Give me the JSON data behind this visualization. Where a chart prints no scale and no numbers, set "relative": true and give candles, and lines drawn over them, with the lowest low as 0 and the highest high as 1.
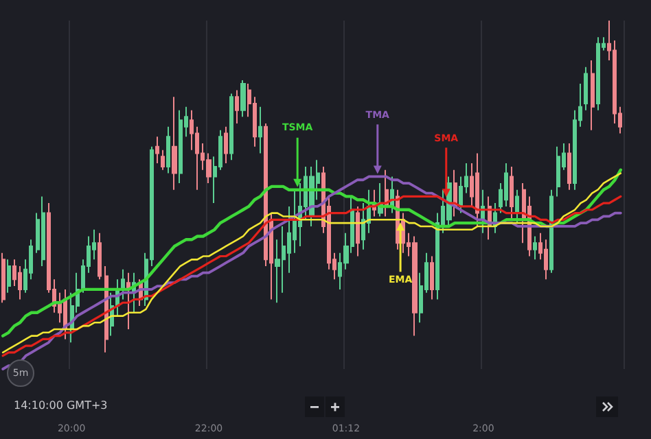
{
  "chart_data": {
    "type": "candlestick",
    "relative": true,
    "grid": "x",
    "marker": "none",
    "line_style": "solid",
    "categories": [
      null,
      null,
      null,
      null,
      null,
      null,
      null,
      null,
      null,
      null,
      null,
      null,
      "20:00",
      null,
      null,
      null,
      null,
      null,
      null,
      null,
      null,
      null,
      null,
      null,
      null,
      null,
      null,
      null,
      null,
      null,
      null,
      null,
      null,
      null,
      null,
      null,
      "22:00",
      null,
      null,
      null,
      null,
      null,
      null,
      null,
      null,
      null,
      null,
      null,
      null,
      null,
      null,
      null,
      null,
      null,
      null,
      null,
      null,
      null,
      null,
      null,
      "01:12",
      null,
      null,
      null,
      null,
      null,
      null,
      null,
      null,
      null,
      null,
      null,
      null,
      null,
      null,
      null,
      null,
      null,
      null,
      null,
      null,
      null,
      null,
      null,
      "2:00",
      null,
      null,
      null,
      null,
      null,
      null,
      null,
      null,
      null,
      null,
      null,
      null,
      null,
      null,
      null,
      null,
      null,
      null,
      null,
      null,
      null,
      null,
      null,
      null
    ],
    "ohlc": [
      [
        0.28,
        0.3,
        0.15,
        0.16
      ],
      [
        0.2,
        0.28,
        0.18,
        0.26
      ],
      [
        0.26,
        0.28,
        0.2,
        0.22
      ],
      [
        0.24,
        0.26,
        0.16,
        0.19
      ],
      [
        0.19,
        0.28,
        0.18,
        0.25
      ],
      [
        0.24,
        0.34,
        0.22,
        0.32
      ],
      [
        0.31,
        0.42,
        0.3,
        0.4
      ],
      [
        0.28,
        0.47,
        0.26,
        0.42
      ],
      [
        0.42,
        0.45,
        0.18,
        0.19
      ],
      [
        0.19,
        0.22,
        0.12,
        0.14
      ],
      [
        0.15,
        0.18,
        0.09,
        0.12
      ],
      [
        0.16,
        0.19,
        0.04,
        0.07
      ],
      [
        0.07,
        0.18,
        0.03,
        0.14
      ],
      [
        0.14,
        0.24,
        0.12,
        0.19
      ],
      [
        0.19,
        0.28,
        0.18,
        0.26
      ],
      [
        0.26,
        0.35,
        0.24,
        0.32
      ],
      [
        0.31,
        0.37,
        0.28,
        0.33
      ],
      [
        0.33,
        0.36,
        0.22,
        0.23
      ],
      [
        0.23,
        0.26,
        0.0,
        0.04
      ],
      [
        0.08,
        0.18,
        0.05,
        0.14
      ],
      [
        0.14,
        0.22,
        0.11,
        0.19
      ],
      [
        0.19,
        0.25,
        0.16,
        0.22
      ],
      [
        0.21,
        0.24,
        0.07,
        0.19
      ],
      [
        0.18,
        0.24,
        0.12,
        0.21
      ],
      [
        0.21,
        0.22,
        0.14,
        0.16
      ],
      [
        0.16,
        0.3,
        0.14,
        0.28
      ],
      [
        0.28,
        0.62,
        0.26,
        0.61
      ],
      [
        0.62,
        0.65,
        0.57,
        0.6
      ],
      [
        0.59,
        0.61,
        0.55,
        0.56
      ],
      [
        0.56,
        0.68,
        0.54,
        0.65
      ],
      [
        0.62,
        0.77,
        0.49,
        0.54
      ],
      [
        0.54,
        0.73,
        0.51,
        0.7
      ],
      [
        0.68,
        0.74,
        0.65,
        0.71
      ],
      [
        0.7,
        0.73,
        0.61,
        0.66
      ],
      [
        0.66,
        0.68,
        0.49,
        0.6
      ],
      [
        0.6,
        0.63,
        0.55,
        0.58
      ],
      [
        0.58,
        0.6,
        0.51,
        0.53
      ],
      [
        0.53,
        0.59,
        0.45,
        0.56
      ],
      [
        0.56,
        0.67,
        0.55,
        0.65
      ],
      [
        0.66,
        0.68,
        0.57,
        0.6
      ],
      [
        0.6,
        0.78,
        0.58,
        0.77
      ],
      [
        0.77,
        0.79,
        0.69,
        0.73
      ],
      [
        0.73,
        0.82,
        0.71,
        0.81
      ],
      [
        0.79,
        0.81,
        0.71,
        0.75
      ],
      [
        0.75,
        0.77,
        0.62,
        0.65
      ],
      [
        0.65,
        0.74,
        0.6,
        0.68
      ],
      [
        0.68,
        0.69,
        0.26,
        0.28
      ],
      [
        0.4,
        0.42,
        0.16,
        0.27
      ],
      [
        0.26,
        0.34,
        0.15,
        0.28
      ],
      [
        0.28,
        0.38,
        0.18,
        0.32
      ],
      [
        0.3,
        0.44,
        0.24,
        0.36
      ],
      [
        0.34,
        0.49,
        0.3,
        0.4
      ],
      [
        0.38,
        0.51,
        0.32,
        0.44
      ],
      [
        0.44,
        0.56,
        0.4,
        0.53
      ],
      [
        0.41,
        0.56,
        0.38,
        0.53
      ],
      [
        0.51,
        0.58,
        0.46,
        0.54
      ],
      [
        0.54,
        0.56,
        0.36,
        0.38
      ],
      [
        0.44,
        0.47,
        0.25,
        0.27
      ],
      [
        0.28,
        0.3,
        0.22,
        0.25
      ],
      [
        0.23,
        0.3,
        0.19,
        0.27
      ],
      [
        0.27,
        0.36,
        0.25,
        0.32
      ],
      [
        0.32,
        0.47,
        0.3,
        0.43
      ],
      [
        0.42,
        0.44,
        0.29,
        0.33
      ],
      [
        0.34,
        0.45,
        0.31,
        0.4
      ],
      [
        0.39,
        0.49,
        0.36,
        0.44
      ],
      [
        0.45,
        0.49,
        0.41,
        0.43
      ],
      [
        0.42,
        0.51,
        0.41,
        0.45
      ],
      [
        0.49,
        0.55,
        0.41,
        0.44
      ],
      [
        0.44,
        0.53,
        0.42,
        0.49
      ],
      [
        0.47,
        0.49,
        0.31,
        0.33
      ],
      [
        0.4,
        0.42,
        0.3,
        0.33
      ],
      [
        0.33,
        0.36,
        0.29,
        0.32
      ],
      [
        0.33,
        0.35,
        0.05,
        0.12
      ],
      [
        0.12,
        0.24,
        0.09,
        0.2
      ],
      [
        0.19,
        0.3,
        0.18,
        0.27
      ],
      [
        0.27,
        0.29,
        0.16,
        0.19
      ],
      [
        0.19,
        0.42,
        0.16,
        0.39
      ],
      [
        0.38,
        0.49,
        0.36,
        0.44
      ],
      [
        0.4,
        0.53,
        0.38,
        0.51
      ],
      [
        0.51,
        0.55,
        0.41,
        0.44
      ],
      [
        0.44,
        0.53,
        0.42,
        0.5
      ],
      [
        0.5,
        0.57,
        0.48,
        0.53
      ],
      [
        0.53,
        0.57,
        0.44,
        0.47
      ],
      [
        0.54,
        0.6,
        0.38,
        0.42
      ],
      [
        0.4,
        0.49,
        0.36,
        0.44
      ],
      [
        0.44,
        0.47,
        0.34,
        0.38
      ],
      [
        0.38,
        0.45,
        0.36,
        0.42
      ],
      [
        0.44,
        0.51,
        0.42,
        0.49
      ],
      [
        0.46,
        0.57,
        0.44,
        0.54
      ],
      [
        0.53,
        0.56,
        0.4,
        0.44
      ],
      [
        0.42,
        0.49,
        0.39,
        0.47
      ],
      [
        0.49,
        0.51,
        0.33,
        0.4
      ],
      [
        0.44,
        0.47,
        0.29,
        0.31
      ],
      [
        0.31,
        0.35,
        0.28,
        0.33
      ],
      [
        0.33,
        0.36,
        0.28,
        0.3
      ],
      [
        0.31,
        0.34,
        0.22,
        0.25
      ],
      [
        0.25,
        0.49,
        0.24,
        0.47
      ],
      [
        0.5,
        0.62,
        0.47,
        0.59
      ],
      [
        0.56,
        0.63,
        0.55,
        0.6
      ],
      [
        0.6,
        0.63,
        0.49,
        0.51
      ],
      [
        0.51,
        0.73,
        0.49,
        0.7
      ],
      [
        0.7,
        0.81,
        0.68,
        0.74
      ],
      [
        0.75,
        0.86,
        0.73,
        0.84
      ],
      [
        0.84,
        0.88,
        0.67,
        0.74
      ],
      [
        0.75,
        0.95,
        0.73,
        0.93
      ],
      [
        0.92,
        0.95,
        0.91,
        0.93
      ],
      [
        0.93,
        1.0,
        0.88,
        0.91
      ],
      [
        0.91,
        0.94,
        0.69,
        0.72
      ],
      [
        0.72,
        0.74,
        0.66,
        0.68
      ]
    ],
    "series": [
      {
        "type": "line",
        "name": "TSMA",
        "color": "#3fd83a",
        "values": [
          0.05,
          0.06,
          0.08,
          0.09,
          0.11,
          0.12,
          0.12,
          0.13,
          0.14,
          0.15,
          0.15,
          0.16,
          0.17,
          0.18,
          0.19,
          0.19,
          0.19,
          0.19,
          0.19,
          0.19,
          0.19,
          0.19,
          0.19,
          0.2,
          0.21,
          0.22,
          0.24,
          0.26,
          0.28,
          0.3,
          0.32,
          0.33,
          0.34,
          0.34,
          0.35,
          0.35,
          0.36,
          0.37,
          0.39,
          0.4,
          0.41,
          0.42,
          0.43,
          0.44,
          0.46,
          0.47,
          0.49,
          0.5,
          0.5,
          0.5,
          0.49,
          0.49,
          0.49,
          0.49,
          0.49,
          0.49,
          0.49,
          0.49,
          0.48,
          0.48,
          0.47,
          0.47,
          0.46,
          0.46,
          0.45,
          0.45,
          0.44,
          0.44,
          0.44,
          0.43,
          0.43,
          0.43,
          0.42,
          0.41,
          0.4,
          0.39,
          0.38,
          0.38,
          0.38,
          0.39,
          0.39,
          0.39,
          0.39,
          0.39,
          0.39,
          0.39,
          0.39,
          0.39,
          0.4,
          0.4,
          0.4,
          0.4,
          0.4,
          0.39,
          0.39,
          0.38,
          0.38,
          0.39,
          0.39,
          0.4,
          0.41,
          0.42,
          0.43,
          0.45,
          0.47,
          0.49,
          0.5,
          0.52,
          0.55
        ]
      },
      {
        "type": "line",
        "name": "TMA",
        "color": "#8a5cb8",
        "values": [
          -0.05,
          -0.04,
          -0.04,
          -0.03,
          -0.01,
          0.0,
          0.01,
          0.02,
          0.03,
          0.05,
          0.06,
          0.08,
          0.09,
          0.11,
          0.12,
          0.13,
          0.14,
          0.15,
          0.16,
          0.17,
          0.17,
          0.18,
          0.18,
          0.18,
          0.19,
          0.19,
          0.19,
          0.2,
          0.2,
          0.21,
          0.21,
          0.22,
          0.22,
          0.23,
          0.23,
          0.24,
          0.24,
          0.25,
          0.26,
          0.27,
          0.28,
          0.29,
          0.3,
          0.32,
          0.33,
          0.34,
          0.35,
          0.37,
          0.38,
          0.39,
          0.4,
          0.41,
          0.42,
          0.43,
          0.44,
          0.44,
          0.45,
          0.47,
          0.48,
          0.49,
          0.5,
          0.51,
          0.52,
          0.52,
          0.53,
          0.53,
          0.53,
          0.53,
          0.52,
          0.52,
          0.51,
          0.51,
          0.5,
          0.49,
          0.48,
          0.48,
          0.47,
          0.46,
          0.45,
          0.44,
          0.43,
          0.42,
          0.41,
          0.4,
          0.4,
          0.39,
          0.39,
          0.39,
          0.39,
          0.39,
          0.38,
          0.38,
          0.38,
          0.38,
          0.38,
          0.38,
          0.38,
          0.38,
          0.38,
          0.38,
          0.38,
          0.39,
          0.39,
          0.4,
          0.4,
          0.41,
          0.41,
          0.42,
          0.42
        ]
      },
      {
        "type": "line",
        "name": "SMA",
        "color": "#e3221c",
        "values": [
          -0.01,
          0.0,
          0.0,
          0.01,
          0.02,
          0.02,
          0.03,
          0.04,
          0.04,
          0.05,
          0.05,
          0.06,
          0.06,
          0.07,
          0.08,
          0.09,
          0.1,
          0.11,
          0.12,
          0.13,
          0.14,
          0.15,
          0.15,
          0.16,
          0.16,
          0.17,
          0.17,
          0.18,
          0.19,
          0.2,
          0.21,
          0.22,
          0.23,
          0.24,
          0.25,
          0.26,
          0.27,
          0.28,
          0.29,
          0.29,
          0.3,
          0.31,
          0.32,
          0.33,
          0.35,
          0.37,
          0.39,
          0.4,
          0.4,
          0.4,
          0.4,
          0.4,
          0.4,
          0.41,
          0.41,
          0.41,
          0.41,
          0.42,
          0.42,
          0.42,
          0.42,
          0.43,
          0.43,
          0.43,
          0.44,
          0.44,
          0.45,
          0.45,
          0.46,
          0.46,
          0.47,
          0.47,
          0.47,
          0.47,
          0.47,
          0.47,
          0.47,
          0.46,
          0.45,
          0.45,
          0.44,
          0.44,
          0.44,
          0.43,
          0.43,
          0.43,
          0.43,
          0.43,
          0.42,
          0.42,
          0.42,
          0.42,
          0.41,
          0.41,
          0.4,
          0.4,
          0.39,
          0.4,
          0.4,
          0.41,
          0.42,
          0.42,
          0.43,
          0.43,
          0.44,
          0.45,
          0.45,
          0.46,
          0.47
        ]
      },
      {
        "type": "line",
        "name": "EMA",
        "color": "#f1e634",
        "values": [
          0.0,
          0.01,
          0.02,
          0.03,
          0.04,
          0.05,
          0.05,
          0.06,
          0.06,
          0.07,
          0.07,
          0.07,
          0.07,
          0.07,
          0.08,
          0.08,
          0.09,
          0.09,
          0.1,
          0.11,
          0.11,
          0.11,
          0.12,
          0.12,
          0.12,
          0.13,
          0.16,
          0.18,
          0.2,
          0.22,
          0.24,
          0.26,
          0.27,
          0.28,
          0.28,
          0.29,
          0.29,
          0.3,
          0.31,
          0.32,
          0.33,
          0.34,
          0.35,
          0.37,
          0.38,
          0.39,
          0.41,
          0.42,
          0.42,
          0.41,
          0.41,
          0.41,
          0.4,
          0.4,
          0.4,
          0.4,
          0.4,
          0.39,
          0.39,
          0.39,
          0.39,
          0.39,
          0.39,
          0.39,
          0.4,
          0.4,
          0.4,
          0.4,
          0.4,
          0.4,
          0.4,
          0.39,
          0.39,
          0.38,
          0.38,
          0.38,
          0.37,
          0.37,
          0.37,
          0.37,
          0.37,
          0.37,
          0.37,
          0.38,
          0.38,
          0.38,
          0.38,
          0.39,
          0.39,
          0.39,
          0.39,
          0.39,
          0.39,
          0.39,
          0.38,
          0.38,
          0.38,
          0.39,
          0.41,
          0.42,
          0.43,
          0.45,
          0.46,
          0.48,
          0.49,
          0.51,
          0.52,
          0.53,
          0.54
        ]
      }
    ],
    "annotations": [
      "14:10:00 GMT+3",
      "5m"
    ]
  }
}
